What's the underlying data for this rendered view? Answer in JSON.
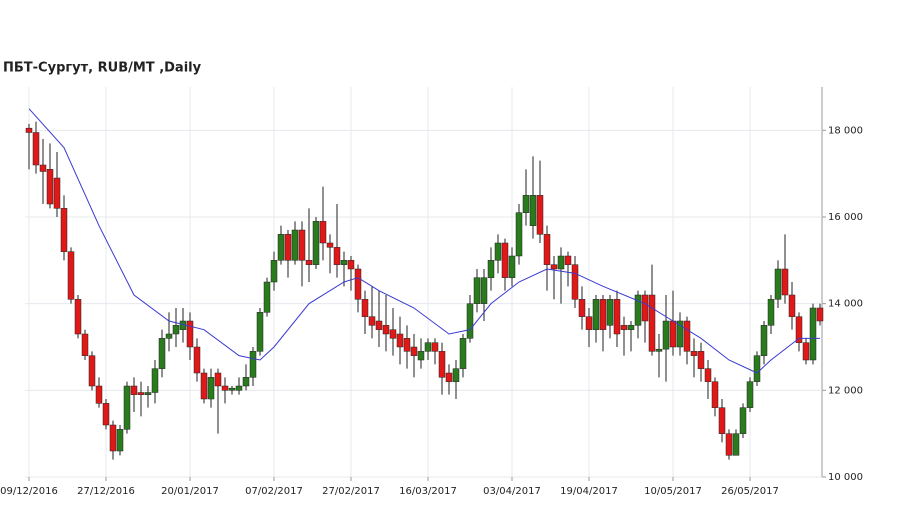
{
  "chart_data": {
    "type": "candlestick",
    "title": "ПБТ-Сургут,  RUB/MT ,Daily",
    "categories": [
      "09/12/2016",
      null,
      null,
      null,
      null,
      null,
      null,
      null,
      null,
      null,
      null,
      "27/12/2016",
      null,
      null,
      null,
      null,
      null,
      null,
      null,
      null,
      null,
      null,
      null,
      "20/01/2017",
      null,
      null,
      null,
      null,
      null,
      null,
      null,
      null,
      null,
      null,
      null,
      "07/02/2017",
      null,
      null,
      null,
      null,
      null,
      null,
      null,
      null,
      null,
      null,
      "27/02/2017",
      null,
      null,
      null,
      null,
      null,
      null,
      null,
      null,
      null,
      null,
      "16/03/2017",
      null,
      null,
      null,
      null,
      null,
      null,
      null,
      null,
      null,
      null,
      null,
      "03/04/2017",
      null,
      null,
      null,
      null,
      null,
      null,
      null,
      null,
      null,
      null,
      "19/04/2017",
      null,
      null,
      null,
      null,
      null,
      null,
      null,
      null,
      null,
      null,
      null,
      "10/05/2017",
      null,
      null,
      null,
      null,
      null,
      null,
      null,
      null,
      null,
      null,
      "26/05/2017",
      null,
      null,
      null,
      null,
      null,
      null,
      null,
      null,
      null,
      null
    ],
    "open": [
      18050,
      17950,
      17200,
      17100,
      16900,
      16200,
      15200,
      14100,
      13300,
      12800,
      12100,
      11700,
      11200,
      10600,
      11100,
      12100,
      11950,
      11900,
      11950,
      12500,
      13200,
      13300,
      13400,
      13600,
      13000,
      12400,
      11800,
      12400,
      12100,
      12000,
      12000,
      12100,
      12300,
      12900,
      13800,
      14500,
      15000,
      15600,
      15000,
      15700,
      15000,
      14900,
      15900,
      15400,
      15300,
      14900,
      15000,
      14800,
      14100,
      13700,
      13600,
      13500,
      13400,
      13300,
      13200,
      13000,
      12700,
      12900,
      13100,
      12900,
      12400,
      12200,
      12500,
      13200,
      14000,
      14000,
      14600,
      15000,
      15400,
      14600,
      15100,
      16100,
      15800,
      16500,
      15600,
      14900,
      14800,
      15100,
      14900,
      14100,
      13700,
      13400,
      14100,
      13500,
      14100,
      13500,
      13400,
      13500,
      14200,
      14200,
      12900,
      12950,
      13600,
      13000,
      13600,
      12900,
      12900,
      12500,
      12200,
      11600,
      11000,
      10500,
      11000,
      11600,
      12200,
      12800,
      13500,
      14100,
      14800,
      14200,
      13700,
      13100,
      12700,
      13900
    ],
    "high": [
      18150,
      18200,
      17800,
      17700,
      17500,
      16500,
      15300,
      14200,
      13400,
      12900,
      12300,
      11800,
      11300,
      11200,
      12200,
      12300,
      12200,
      12100,
      12700,
      13400,
      13800,
      13900,
      13900,
      13800,
      13200,
      12500,
      12500,
      12500,
      12300,
      12100,
      12300,
      12600,
      13000,
      13900,
      14600,
      15200,
      15800,
      15700,
      15900,
      15900,
      16200,
      16000,
      16700,
      15600,
      16300,
      15200,
      15100,
      14900,
      14300,
      14400,
      14300,
      14200,
      13900,
      13700,
      13500,
      13300,
      13200,
      13200,
      13200,
      13100,
      12600,
      12700,
      13300,
      14200,
      14800,
      14800,
      15300,
      15600,
      15500,
      15300,
      16300,
      17100,
      17400,
      17300,
      15800,
      15100,
      15300,
      15200,
      15100,
      14400,
      13900,
      14200,
      14200,
      14200,
      14300,
      13700,
      13600,
      14300,
      14300,
      14900,
      13300,
      14200,
      14300,
      13800,
      13700,
      13200,
      13100,
      12700,
      12300,
      11800,
      11100,
      11100,
      11700,
      12300,
      12900,
      13600,
      14200,
      15000,
      15600,
      14500,
      13800,
      13200,
      14000,
      14000
    ],
    "low": [
      17100,
      17000,
      16300,
      16200,
      16000,
      15000,
      14000,
      13200,
      12700,
      12000,
      11600,
      11100,
      10400,
      10500,
      11000,
      11500,
      11400,
      11600,
      11700,
      12300,
      12900,
      13000,
      13100,
      12700,
      12200,
      11700,
      11600,
      11000,
      11700,
      11900,
      11900,
      12000,
      12100,
      12800,
      13700,
      14300,
      14900,
      14600,
      14900,
      14400,
      14500,
      14800,
      15000,
      14700,
      14600,
      14400,
      14300,
      13800,
      13300,
      13200,
      13000,
      12900,
      12800,
      12600,
      12500,
      12300,
      12500,
      12700,
      12600,
      11900,
      11900,
      11800,
      12300,
      13100,
      13800,
      13600,
      14300,
      14700,
      14300,
      14400,
      14900,
      15800,
      15500,
      15400,
      14300,
      14100,
      14000,
      14400,
      13900,
      13400,
      13000,
      13100,
      12900,
      13200,
      13000,
      12800,
      12900,
      13200,
      13100,
      12800,
      12300,
      12200,
      12800,
      12800,
      12600,
      12300,
      12200,
      11800,
      11400,
      10800,
      10400,
      10500,
      10900,
      11500,
      12100,
      12600,
      13300,
      13900,
      14000,
      13400,
      12900,
      12600,
      12600,
      13500
    ],
    "close": [
      17950,
      17200,
      17050,
      16300,
      16200,
      15200,
      14100,
      13300,
      12800,
      12100,
      11700,
      11200,
      10600,
      11100,
      12100,
      11900,
      11900,
      11950,
      12500,
      13200,
      13300,
      13500,
      13600,
      13000,
      12400,
      11800,
      12300,
      12100,
      12000,
      12050,
      12100,
      12300,
      12900,
      13800,
      14500,
      15000,
      15600,
      15000,
      15700,
      15000,
      14900,
      15900,
      15400,
      15300,
      14900,
      15000,
      14800,
      14100,
      13700,
      13500,
      13400,
      13300,
      13200,
      13000,
      12900,
      12800,
      12900,
      13100,
      12900,
      12300,
      12200,
      12500,
      13200,
      14000,
      14600,
      14600,
      15000,
      15400,
      14600,
      15100,
      16100,
      16500,
      16500,
      15600,
      14900,
      14800,
      15100,
      14900,
      14100,
      13700,
      13400,
      14100,
      13400,
      14100,
      13300,
      13400,
      13500,
      14200,
      13600,
      12900,
      12950,
      13600,
      13000,
      13600,
      12900,
      12800,
      12500,
      12200,
      11600,
      11000,
      10500,
      11000,
      11600,
      12200,
      12800,
      13500,
      14100,
      14800,
      14200,
      13700,
      13100,
      12700,
      13900,
      13600
    ],
    "up_color": "#2a7a1e",
    "down_color": "#e01818",
    "ma": {
      "color": "#3a3ad0",
      "x": [
        0,
        5,
        10,
        15,
        20,
        25,
        30,
        33,
        35,
        40,
        45,
        47,
        50,
        55,
        60,
        63,
        66,
        70,
        74,
        78,
        82,
        88,
        92,
        96,
        100,
        104,
        106,
        110,
        113
      ],
      "values": [
        18500,
        17600,
        15800,
        14200,
        13600,
        13400,
        12800,
        12700,
        13000,
        14000,
        14500,
        14600,
        14300,
        13900,
        13300,
        13400,
        14000,
        14500,
        14800,
        14700,
        14400,
        14000,
        13600,
        13200,
        12700,
        12400,
        12700,
        13200,
        13200
      ]
    },
    "ylim": [
      10000,
      19000
    ],
    "yticks": [
      {
        "value": 10000,
        "label": "10 000"
      },
      {
        "value": 12000,
        "label": "12 000"
      },
      {
        "value": 14000,
        "label": "14 000"
      },
      {
        "value": 16000,
        "label": "16 000"
      },
      {
        "value": 18000,
        "label": "18 000"
      }
    ],
    "grid": true
  }
}
